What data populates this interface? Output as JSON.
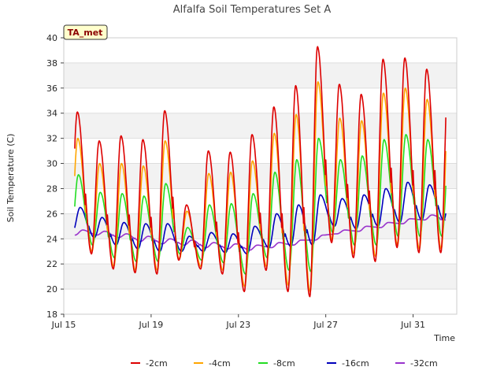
{
  "chart_data": {
    "type": "line",
    "title": "Alfalfa Soil Temperatures Set A",
    "xlabel": "Time",
    "ylabel": "Soil Temperature (C)",
    "badge": "TA_met",
    "ylim": [
      18,
      40
    ],
    "yticks": [
      18,
      20,
      22,
      24,
      26,
      28,
      30,
      32,
      34,
      36,
      38,
      40
    ],
    "xlim": [
      "2015-07-15",
      "2015-08-02"
    ],
    "xtick_dates": [
      "2015-07-15",
      "2015-07-19",
      "2015-07-23",
      "2015-07-27",
      "2015-07-31"
    ],
    "xtick_labels": [
      "Jul 15",
      "Jul 19",
      "Jul 23",
      "Jul 27",
      "Jul 31"
    ],
    "x_start": "2015-07-15T12:00",
    "x_end": "2015-08-01T12:00",
    "alternating_bands": true,
    "legend_position": "bottom",
    "series": [
      {
        "name": "-2cm",
        "color": "#dd0000",
        "daily_max": [
          34.1,
          31.8,
          32.2,
          31.9,
          34.2,
          26.7,
          31.0,
          30.9,
          32.3,
          34.5,
          36.2,
          39.3,
          36.3,
          35.5,
          38.3,
          38.4,
          37.5
        ],
        "daily_min": [
          23.0,
          22.8,
          21.6,
          21.3,
          21.2,
          22.3,
          21.6,
          21.2,
          19.8,
          21.5,
          19.8,
          19.4,
          23.7,
          22.5,
          22.2,
          23.3,
          22.9
        ]
      },
      {
        "name": "-4cm",
        "color": "#ffa500",
        "daily_max": [
          32.0,
          30.0,
          30.0,
          29.8,
          31.8,
          26.2,
          29.2,
          29.3,
          30.2,
          32.4,
          33.9,
          36.5,
          33.6,
          33.4,
          35.6,
          36.0,
          35.1
        ],
        "daily_min": [
          23.3,
          23.0,
          21.8,
          21.5,
          21.5,
          22.4,
          21.8,
          21.5,
          20.2,
          21.8,
          20.3,
          19.8,
          23.9,
          22.8,
          22.6,
          23.5,
          23.2
        ]
      },
      {
        "name": "-8cm",
        "color": "#22dd22",
        "daily_max": [
          29.1,
          27.7,
          27.6,
          27.4,
          28.4,
          24.9,
          26.7,
          26.8,
          27.6,
          29.3,
          30.3,
          32.0,
          30.3,
          30.6,
          31.9,
          32.3,
          31.9
        ],
        "daily_min": [
          23.8,
          23.5,
          22.5,
          22.2,
          22.2,
          22.8,
          22.3,
          22.1,
          21.2,
          22.5,
          21.5,
          21.4,
          24.5,
          23.5,
          23.5,
          24.2,
          24.2
        ]
      },
      {
        "name": "-16cm",
        "color": "#0000bb",
        "daily_max": [
          26.5,
          25.7,
          25.3,
          25.2,
          25.2,
          24.2,
          24.5,
          24.4,
          25.0,
          26.0,
          26.7,
          27.5,
          27.2,
          27.5,
          28.0,
          28.5,
          28.3
        ],
        "daily_min": [
          24.5,
          24.1,
          23.5,
          23.2,
          23.0,
          23.0,
          23.0,
          22.9,
          22.8,
          23.3,
          23.4,
          23.5,
          25.0,
          24.8,
          25.0,
          25.3,
          25.5
        ]
      },
      {
        "name": "-32cm",
        "color": "#9933cc",
        "daily_max": [
          24.7,
          24.6,
          24.4,
          24.2,
          24.0,
          23.9,
          23.7,
          23.6,
          23.5,
          23.7,
          23.9,
          24.3,
          24.7,
          25.0,
          25.3,
          25.6,
          25.9
        ],
        "daily_min": [
          24.3,
          24.3,
          24.1,
          23.8,
          23.6,
          23.5,
          23.3,
          23.2,
          23.1,
          23.3,
          23.5,
          23.9,
          24.4,
          24.6,
          24.9,
          25.2,
          25.5
        ]
      }
    ]
  }
}
